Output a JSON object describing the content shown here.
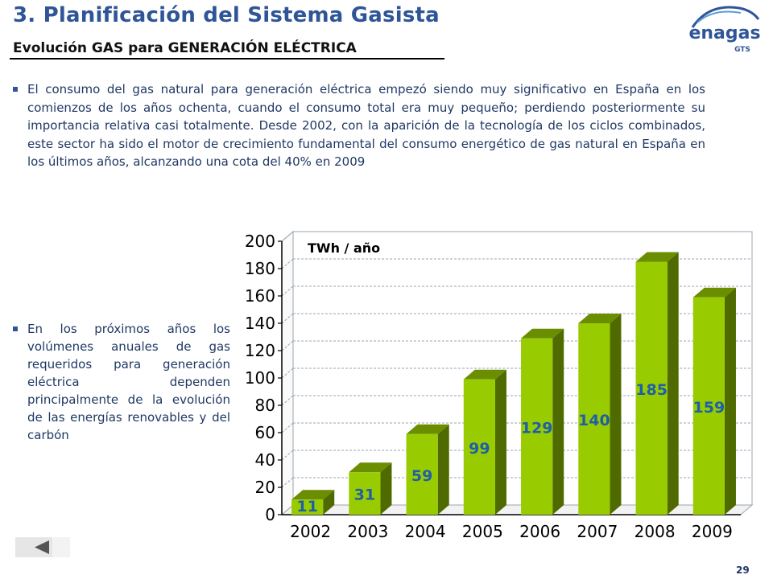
{
  "header": {
    "title": "3. Planificación del Sistema Gasista",
    "subtitle": "Evolución GAS para GENERACIÓN ELÉCTRICA"
  },
  "logo": {
    "name": "enagas",
    "tag": "GTS",
    "icon": "enagas-logo"
  },
  "body": {
    "paragraph1": "El consumo del gas natural para generación eléctrica empezó siendo muy significativo en España en los comienzos de los años ochenta, cuando el consumo total era muy pequeño; perdiendo posteriormente su importancia relativa casi totalmente. Desde 2002, con la aparición de la tecnología de los ciclos combinados, este sector ha sido el motor de crecimiento fundamental del consumo energético de gas natural en España en los últimos años, alcanzando una cota del 40% en 2009",
    "paragraph2": "En los próximos años los volúmenes anuales de gas requeridos para generación eléctrica dependen principalmente de la evolución de las energías renovables y del carbón"
  },
  "chart_data": {
    "type": "bar",
    "unit_label": "TWh / año",
    "categories": [
      "2002",
      "2003",
      "2004",
      "2005",
      "2006",
      "2007",
      "2008",
      "2009"
    ],
    "values": [
      11,
      31,
      59,
      99,
      129,
      140,
      185,
      159
    ],
    "ylim": [
      0,
      200
    ],
    "yticks": [
      0,
      20,
      40,
      60,
      80,
      100,
      120,
      140,
      160,
      180,
      200
    ],
    "grid": "horizontal-dashed",
    "bar_color": "#99cc00",
    "label_color": "#1f5fa8"
  },
  "footer": {
    "nav_icon": "back-arrow-icon",
    "page_number": "29"
  }
}
